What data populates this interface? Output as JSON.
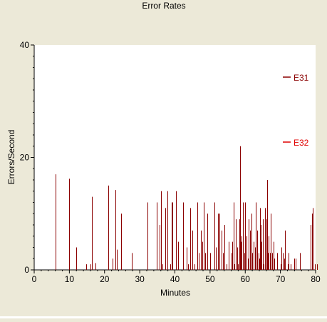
{
  "chart_data": {
    "type": "bar",
    "title": "Error Rates",
    "xlabel": "Minutes",
    "ylabel": "Errors/Second",
    "xlim": [
      0,
      80
    ],
    "ylim": [
      0,
      40
    ],
    "x_ticks": [
      "0",
      "10",
      "20",
      "30",
      "40",
      "50",
      "60",
      "70",
      "80"
    ],
    "y_ticks": [
      "0",
      "20",
      "40"
    ],
    "grid": false,
    "legend_position": "right",
    "colors": {
      "background": "#ece9d8",
      "plot_area": "#ffffff",
      "E31": "#8b0000",
      "E32": "#e00000"
    },
    "series": [
      {
        "name": "E31",
        "x": [
          6,
          10,
          12,
          14.7,
          16,
          16.5,
          17.5,
          21,
          22.3,
          23,
          23.5,
          24.8,
          27.7,
          32.3,
          34.8,
          35.6,
          36,
          36.5,
          37.3,
          37.8,
          38.7,
          39,
          39.2,
          40.3,
          41,
          42.3,
          43.3,
          43.7,
          44.3,
          45,
          45.5,
          46.3,
          46.7,
          47.3,
          47.7,
          48.3,
          48.7,
          49.3,
          50,
          51.3,
          51.7,
          52.3,
          52.7,
          53.3,
          53.7,
          54,
          54.7,
          55.3,
          56,
          56.3,
          56.7,
          57,
          57.3,
          57.7,
          58,
          58.3,
          58.5,
          58.7,
          59,
          59.3,
          59.7,
          60,
          60.3,
          60.7,
          61,
          61.3,
          61.7,
          62,
          62.3,
          62.7,
          63,
          63.3,
          63.7,
          64,
          64.3,
          64.5,
          64.7,
          65,
          65.3,
          65.7,
          66,
          66.3,
          66.5,
          66.7,
          67,
          67.3,
          67.7,
          68,
          68.3,
          69,
          70,
          70.3,
          70.7,
          71,
          71.3,
          72,
          72.3,
          73,
          74,
          74.3,
          75.6,
          78.6,
          78.9,
          79.2,
          79.7,
          80.4
        ],
        "values": [
          17,
          16.2,
          4,
          1,
          1,
          13,
          1.2,
          15,
          2,
          14.2,
          3.6,
          10,
          3,
          12,
          12,
          8,
          14,
          1,
          11,
          14,
          1,
          12,
          12,
          14,
          5,
          12,
          4,
          1,
          11,
          7,
          1,
          12,
          3,
          7,
          5,
          12,
          3,
          10,
          3,
          12,
          4,
          10,
          10,
          7,
          3,
          8,
          1,
          5,
          3,
          5,
          12,
          1,
          9,
          4,
          1,
          9,
          22,
          5,
          6,
          12,
          3,
          12,
          6,
          2,
          9,
          7,
          10,
          3,
          5,
          4,
          12,
          7,
          3,
          2,
          11,
          8,
          5,
          9,
          1,
          11,
          9,
          16,
          3,
          6,
          3,
          10,
          3,
          5,
          2,
          3,
          1,
          4,
          3,
          2,
          7,
          1,
          3,
          1,
          2,
          2,
          3,
          8,
          10,
          11,
          1,
          1
        ]
      },
      {
        "name": "E32",
        "x": [],
        "values": []
      }
    ]
  }
}
